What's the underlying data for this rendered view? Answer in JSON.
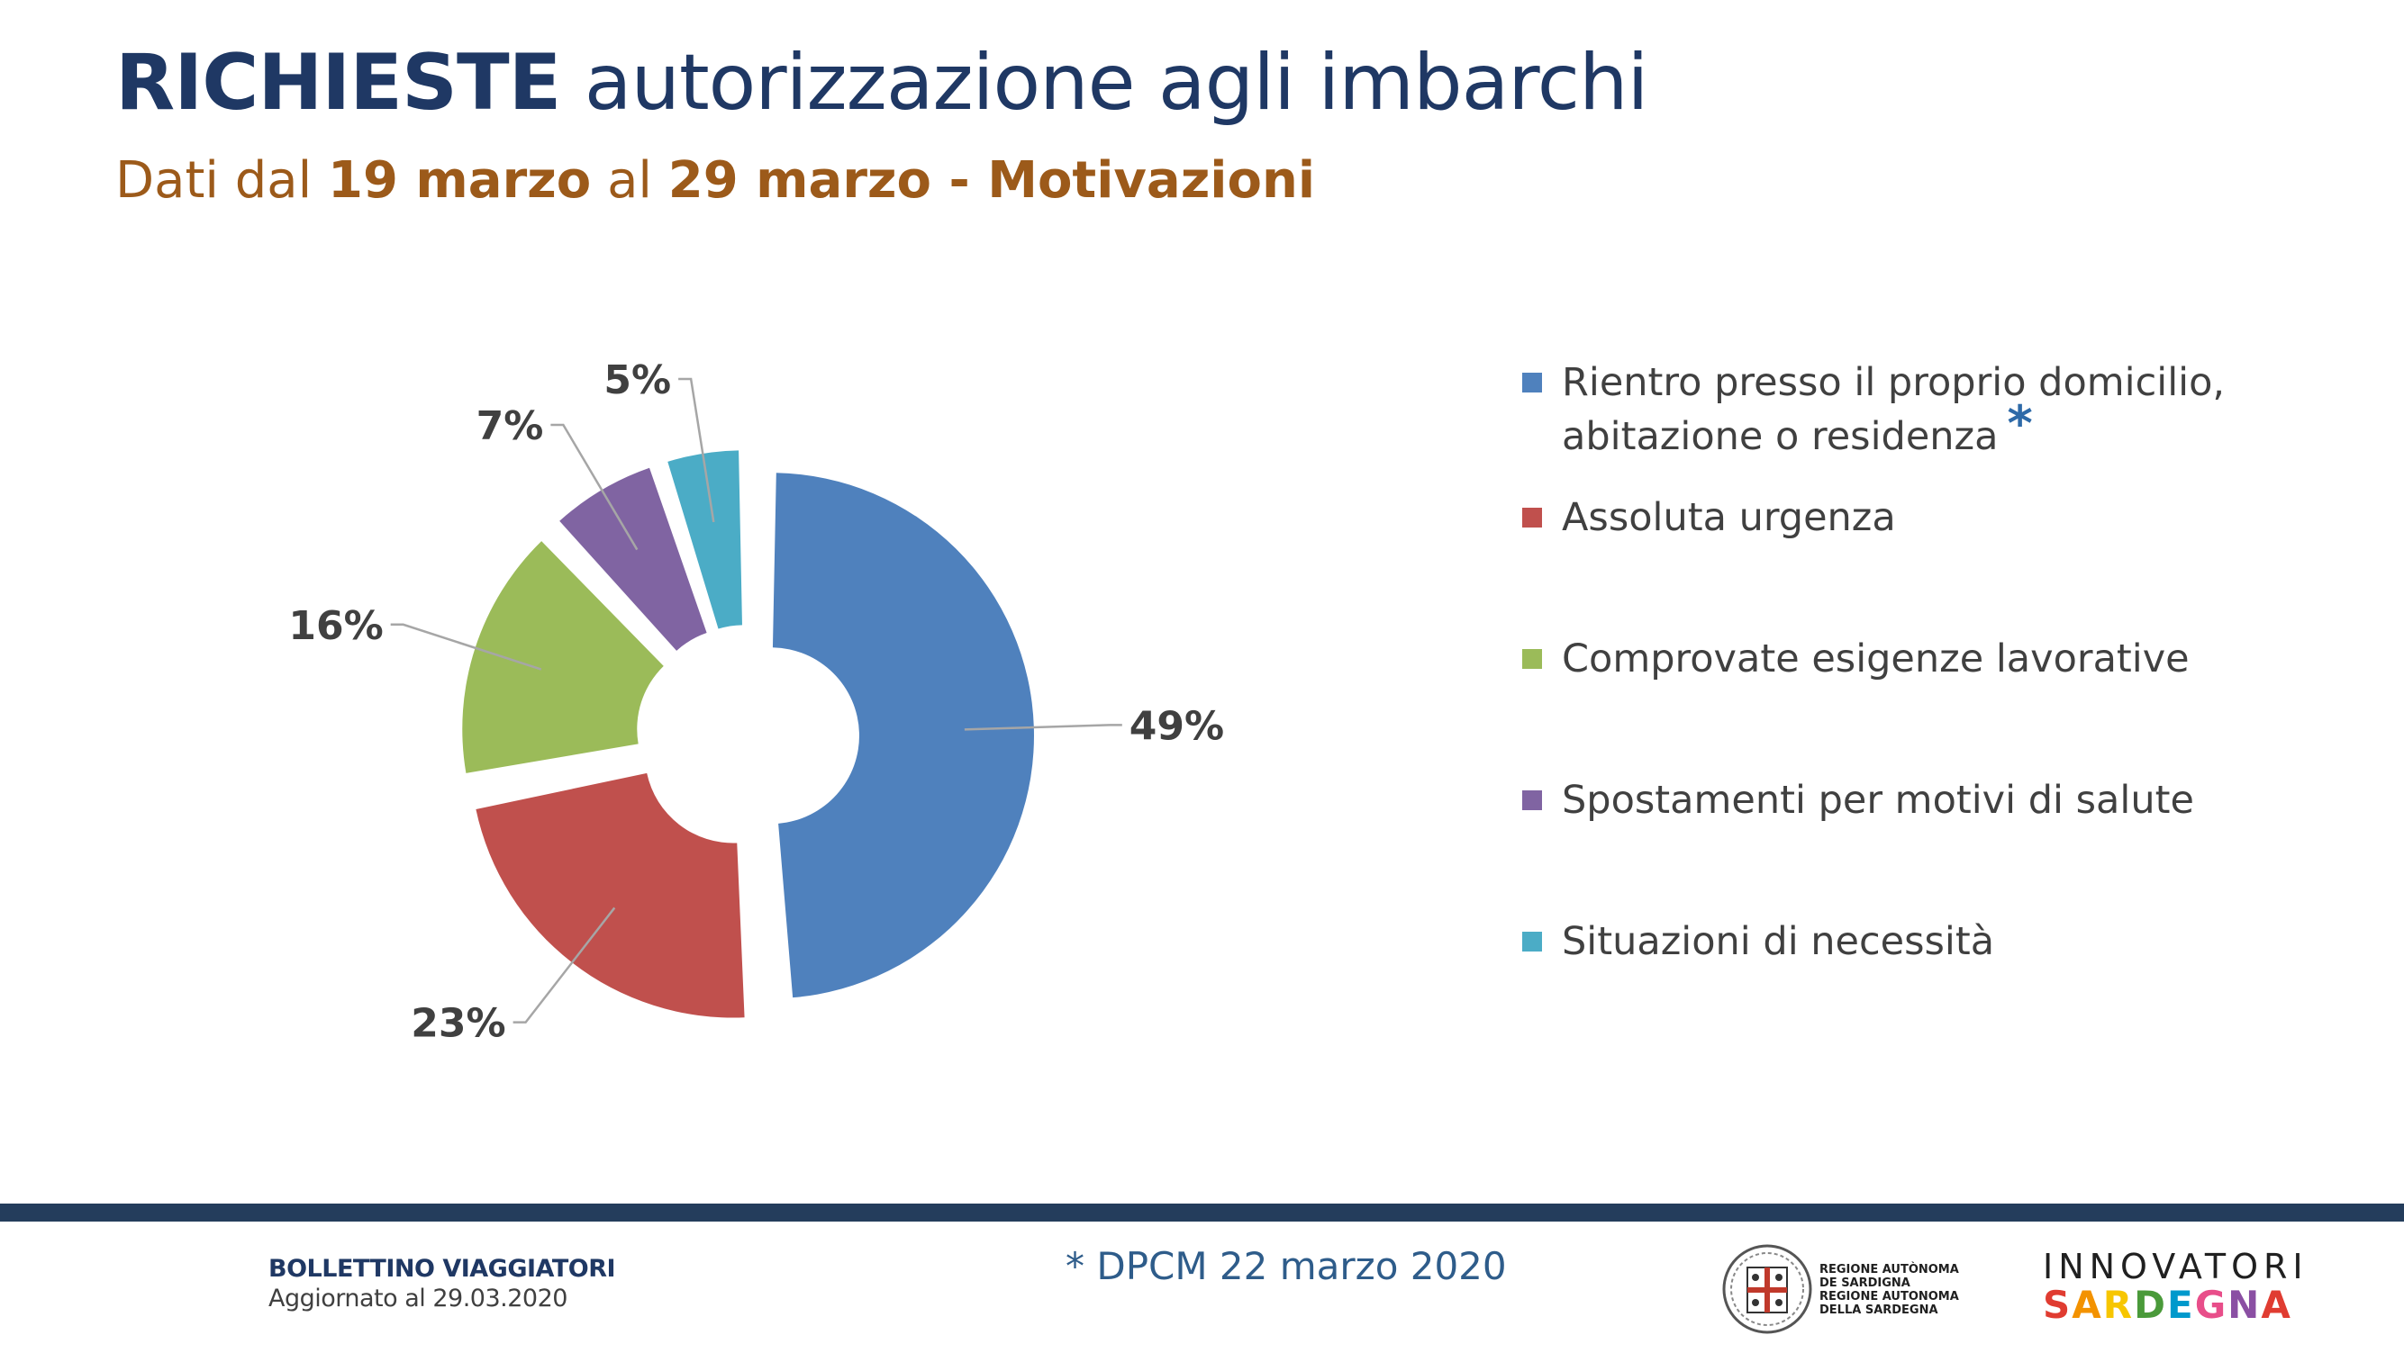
{
  "header": {
    "title_strong": "RICHIESTE",
    "title_rest": "autorizzazione agli imbarchi",
    "subtitle_prefix": "Dati dal",
    "subtitle_date1": "19 marzo",
    "subtitle_mid": "al",
    "subtitle_date2": "29 marzo - Motivazioni"
  },
  "chart_data": {
    "type": "pie",
    "variant": "exploded-doughnut",
    "categories": [
      "Rientro presso il proprio domicilio, abitazione o residenza",
      "Assoluta urgenza",
      "Comprovate esigenze lavorative",
      "Spostamenti per motivi di salute",
      "Situazioni di necessità"
    ],
    "values": [
      49,
      23,
      16,
      7,
      5
    ],
    "data_labels": [
      "49%",
      "23%",
      "16%",
      "7%",
      "5%"
    ],
    "colors": [
      "#4f81bd",
      "#c0504d",
      "#9bbb59",
      "#8064a2",
      "#4bacc6"
    ],
    "legend_position": "right"
  },
  "legend": {
    "items": [
      {
        "line1": "Rientro presso il proprio domicilio,",
        "line2": "abitazione o residenza",
        "marker": "*",
        "color": "#4f81bd"
      },
      {
        "line1": "Assoluta urgenza",
        "color": "#c0504d"
      },
      {
        "line1": "Comprovate esigenze lavorative",
        "color": "#9bbb59"
      },
      {
        "line1": "Spostamenti per motivi di salute",
        "color": "#8064a2"
      },
      {
        "line1": "Situazioni di necessità",
        "color": "#4bacc6"
      }
    ]
  },
  "footer": {
    "bulletin_title": "BOLLETTINO VIAGGIATORI",
    "bulletin_updated": "Aggiornato al 29.03.2020",
    "footnote": "* DPCM 22 marzo 2020",
    "region_line1": "REGIONE AUTÒNOMA",
    "region_line2": "DE SARDIGNA",
    "region_line3": "REGIONE AUTONOMA",
    "region_line4": "DELLA SARDEGNA",
    "brand_top": "INNOVATORI",
    "brand_bottom": "SARDEGNA"
  }
}
